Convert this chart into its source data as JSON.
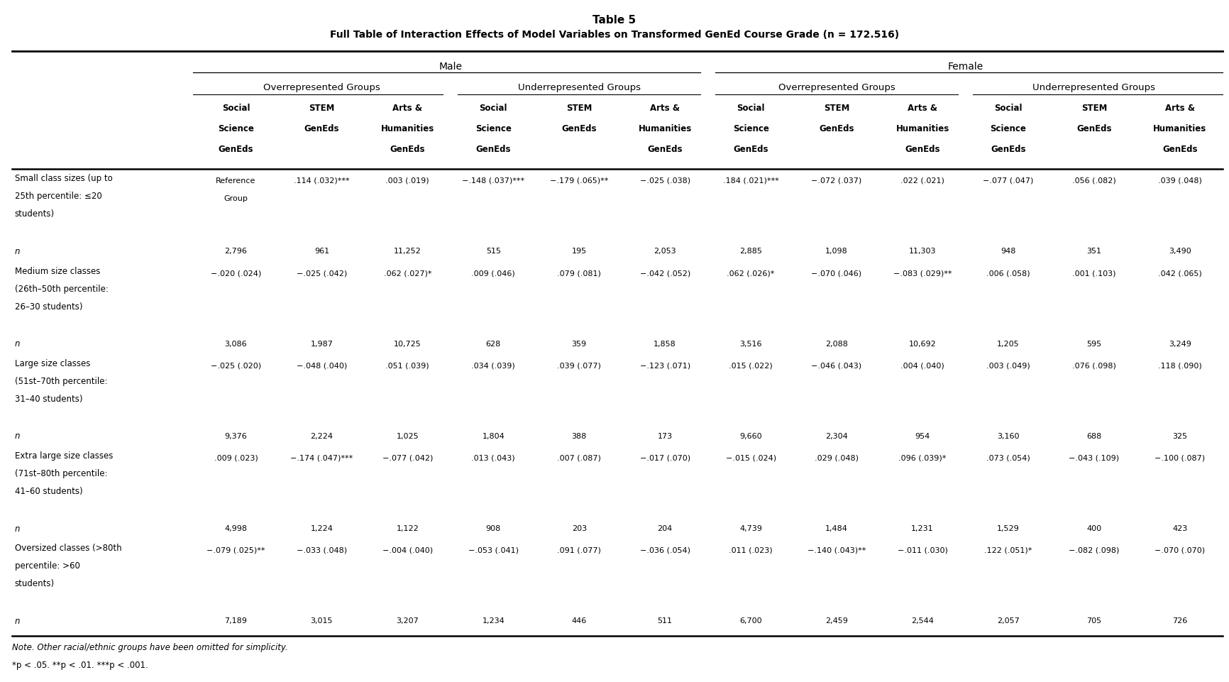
{
  "title_line1": "Table 5",
  "title_line2": "Full Table of Interaction Effects of Model Variables on Transformed GenEd Course Grade (n = 172.516)",
  "note_line1": "Note. Other racial/ethnic groups have been omitted for simplicity.",
  "note_line2": "*p < .05. **p < .01. ***p < .001.",
  "col_headers": [
    "Social\nScience\nGenEds",
    "STEM\nGenEds",
    "Arts &\nHumanities\nGenEds",
    "Social\nScience\nGenEds",
    "STEM\nGenEds",
    "Arts &\nHumanities\nGenEds",
    "Social\nScience\nGenEds",
    "STEM\nGenEds",
    "Arts &\nHumanities\nGenEds",
    "Social\nScience\nGenEds",
    "STEM\nGenEds",
    "Arts &\nHumanities\nGenEds"
  ],
  "row_labels": [
    "Small class sizes (up to\n25th percentile: ≤20\nstudents)",
    "n",
    "Medium size classes\n(26th–50th percentile:\n26–30 students)",
    "n",
    "Large size classes\n(51st–70th percentile:\n31–40 students)",
    "n",
    "Extra large size classes\n(71st–80th percentile:\n41–60 students)",
    "n",
    "Oversized classes (>80th\npercentile: >60\nstudents)",
    "n"
  ],
  "data": [
    [
      "Reference\nGroup",
      ".114 (.032)***",
      ".003 (.019)",
      "−.148 (.037)***",
      "−.179 (.065)**",
      "−.025 (.038)",
      ".184 (.021)***",
      "−.072 (.037)",
      ".022 (.021)",
      "−.077 (.047)",
      ".056 (.082)",
      ".039 (.048)"
    ],
    [
      "2,796",
      "961",
      "11,252",
      "515",
      "195",
      "2,053",
      "2,885",
      "1,098",
      "11,303",
      "948",
      "351",
      "3,490"
    ],
    [
      "−.020 (.024)",
      "−.025 (.042)",
      ".062 (.027)*",
      ".009 (.046)",
      ".079 (.081)",
      "−.042 (.052)",
      ".062 (.026)*",
      "−.070 (.046)",
      "−.083 (.029)**",
      ".006 (.058)",
      ".001 (.103)",
      ".042 (.065)"
    ],
    [
      "3,086",
      "1,987",
      "10,725",
      "628",
      "359",
      "1,858",
      "3,516",
      "2,088",
      "10,692",
      "1,205",
      "595",
      "3,249"
    ],
    [
      "−.025 (.020)",
      "−.048 (.040)",
      ".051 (.039)",
      ".034 (.039)",
      ".039 (.077)",
      "−.123 (.071)",
      ".015 (.022)",
      "−.046 (.043)",
      ".004 (.040)",
      ".003 (.049)",
      ".076 (.098)",
      ".118 (.090)"
    ],
    [
      "9,376",
      "2,224",
      "1,025",
      "1,804",
      "388",
      "173",
      "9,660",
      "2,304",
      "954",
      "3,160",
      "688",
      "325"
    ],
    [
      ".009 (.023)",
      "−.174 (.047)***",
      "−.077 (.042)",
      ".013 (.043)",
      ".007 (.087)",
      "−.017 (.070)",
      "−.015 (.024)",
      ".029 (.048)",
      ".096 (.039)*",
      ".073 (.054)",
      "−.043 (.109)",
      "−.100 (.087)"
    ],
    [
      "4,998",
      "1,224",
      "1,122",
      "908",
      "203",
      "204",
      "4,739",
      "1,484",
      "1,231",
      "1,529",
      "400",
      "423"
    ],
    [
      "−.079 (.025)**",
      "−.033 (.048)",
      "−.004 (.040)",
      "−.053 (.041)",
      ".091 (.077)",
      "−.036 (.054)",
      ".011 (.023)",
      "−.140 (.043)**",
      "−.011 (.030)",
      ".122 (.051)*",
      "−.082 (.098)",
      "−.070 (.070)"
    ],
    [
      "7,189",
      "3,015",
      "3,207",
      "1,234",
      "446",
      "511",
      "6,700",
      "2,459",
      "2,544",
      "2,057",
      "705",
      "726"
    ]
  ],
  "background_color": "#ffffff",
  "text_color": "#000000"
}
